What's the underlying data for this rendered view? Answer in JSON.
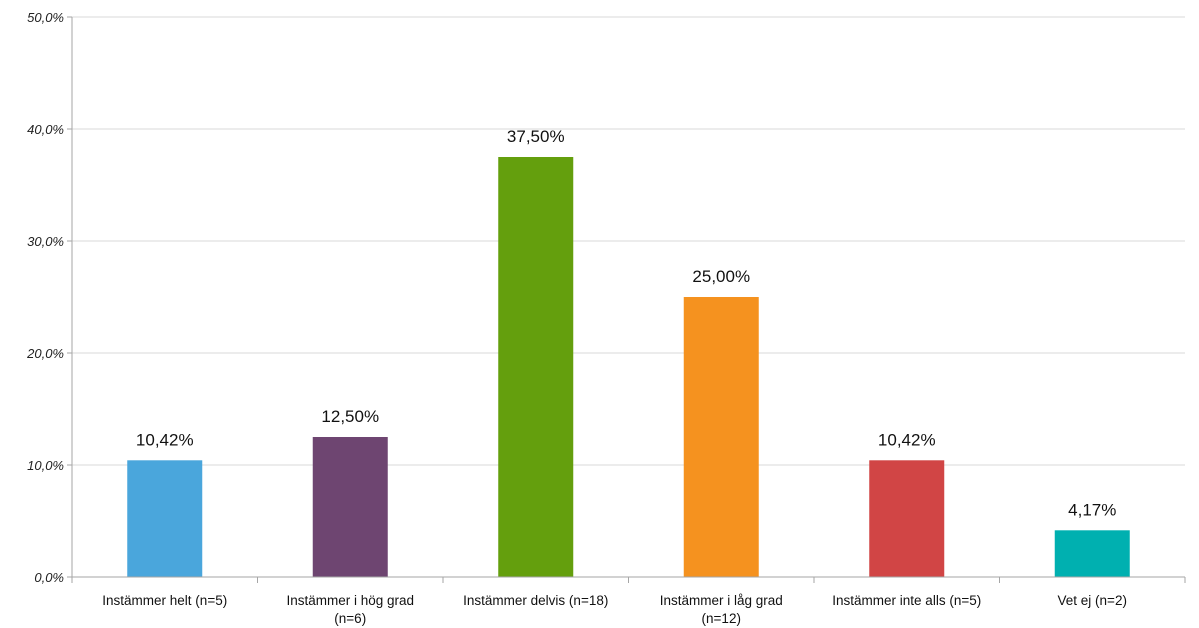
{
  "chart_data": {
    "type": "bar",
    "categories": [
      [
        "Instämmer helt (n=5)"
      ],
      [
        "Instämmer i hög grad",
        "(n=6)"
      ],
      [
        "Instämmer delvis (n=18)"
      ],
      [
        "Instämmer i låg grad",
        "(n=12)"
      ],
      [
        "Instämmer inte alls (n=5)"
      ],
      [
        "Vet ej (n=2)"
      ]
    ],
    "values": [
      10.42,
      12.5,
      37.5,
      25.0,
      10.42,
      4.17
    ],
    "data_labels": [
      "10,42%",
      "12,50%",
      "37,50%",
      "25,00%",
      "10,42%",
      "4,17%"
    ],
    "colors": [
      "#4aa6dc",
      "#6e4571",
      "#649f0d",
      "#f5921f",
      "#d14545",
      "#00b0b0"
    ],
    "ylim": [
      0,
      50
    ],
    "yticks": [
      0,
      10,
      20,
      30,
      40,
      50
    ],
    "ytick_labels": [
      "0,0%",
      "10,0%",
      "20,0%",
      "30,0%",
      "40,0%",
      "50,0%"
    ],
    "grid": true,
    "legend": "none"
  }
}
